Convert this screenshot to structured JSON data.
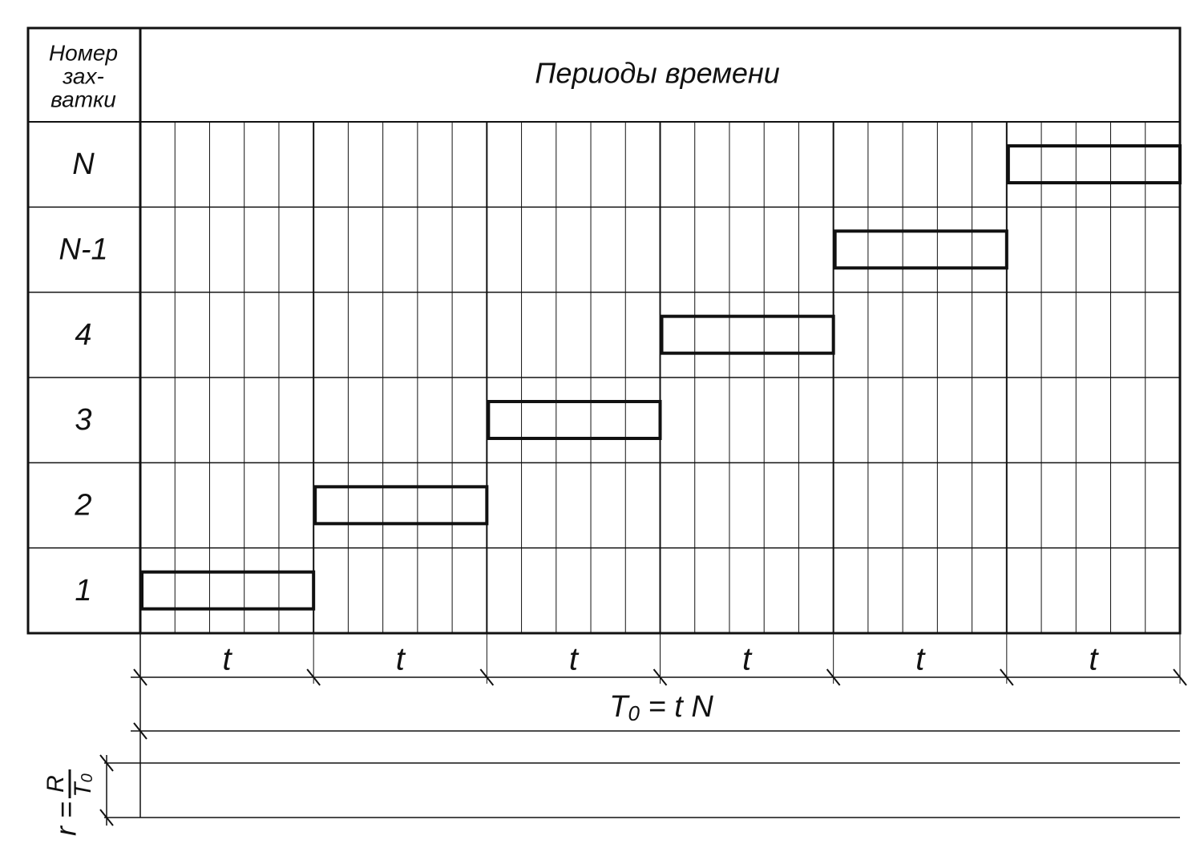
{
  "header": {
    "stage_label": [
      "Номер",
      "зах-",
      "ватки"
    ],
    "title": "Периоды времени"
  },
  "rows": [
    "N",
    "N-1",
    "4",
    "3",
    "2",
    "1"
  ],
  "periods": [
    "t",
    "t",
    "t",
    "t",
    "t",
    "t"
  ],
  "total": {
    "symbol": "T",
    "subscript": "0",
    "rest": " = t N"
  },
  "formula": {
    "lhs": "r =",
    "numerator": "R",
    "denominator": "T",
    "subscript": "0"
  }
}
